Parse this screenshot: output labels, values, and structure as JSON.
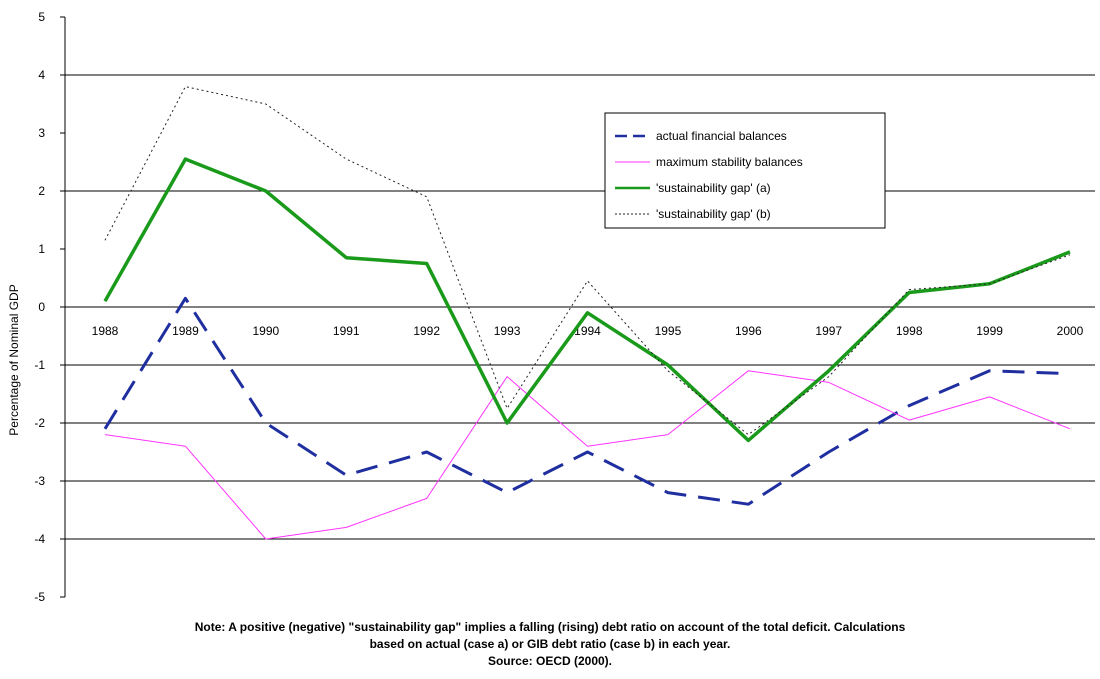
{
  "chart_data": {
    "type": "line",
    "categories": [
      "1988",
      "1989",
      "1990",
      "1991",
      "1992",
      "1993",
      "1994",
      "1995",
      "1996",
      "1997",
      "1998",
      "1999",
      "2000"
    ],
    "ylabel": "Percentage of Nominal GDP",
    "ylim": [
      -5,
      5
    ],
    "yticks": [
      5,
      4,
      3,
      2,
      1,
      0,
      -1,
      -2,
      -3,
      -4,
      -5
    ],
    "gridlines": [
      4,
      2,
      -1,
      -2,
      -3,
      -4
    ],
    "legend_position": "top-right",
    "series": [
      {
        "name": "actual financial balances",
        "color": "#1f2fa0",
        "style": "long-dash",
        "width": 3,
        "values": [
          -2.1,
          0.15,
          -2.0,
          -2.9,
          -2.5,
          -3.2,
          -2.5,
          -3.2,
          -3.4,
          -2.5,
          -1.7,
          -1.1,
          -1.15
        ]
      },
      {
        "name": "maximum stability balances",
        "color": "#ff33ff",
        "style": "solid",
        "width": 1,
        "values": [
          -2.2,
          -2.4,
          -4.0,
          -3.8,
          -3.3,
          -1.2,
          -2.4,
          -2.2,
          -1.1,
          -1.3,
          -1.95,
          -1.55,
          -2.1
        ]
      },
      {
        "name": "'sustainability gap' (a)",
        "color": "#1a9a1a",
        "style": "solid",
        "width": 3.5,
        "values": [
          0.1,
          2.55,
          2.0,
          0.85,
          0.75,
          -2.0,
          -0.1,
          -1.0,
          -2.3,
          -1.1,
          0.25,
          0.4,
          0.95
        ]
      },
      {
        "name": "'sustainability gap' (b)",
        "color": "#222222",
        "style": "dotted",
        "width": 1,
        "values": [
          1.15,
          3.8,
          3.5,
          2.55,
          1.9,
          -1.75,
          0.45,
          -1.1,
          -2.2,
          -1.2,
          0.3,
          0.4,
          0.9
        ]
      }
    ]
  },
  "footnote": {
    "line1": "Note: A positive (negative) \"sustainability gap\" implies a falling (rising) debt ratio on account of the total deficit. Calculations",
    "line2": "based on actual (case a) or GIB debt ratio (case b) in each year.",
    "line3": "Source: OECD (2000)."
  }
}
